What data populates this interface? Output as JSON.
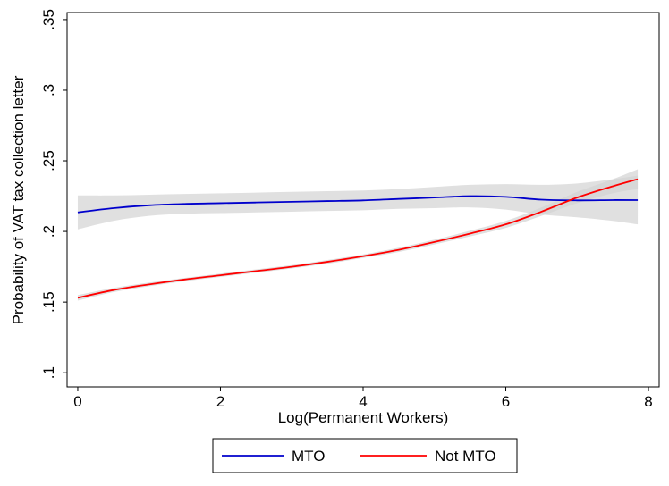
{
  "chart_data": {
    "type": "line",
    "title": "",
    "xlabel": "Log(Permanent Workers)",
    "ylabel": "Probability of VAT tax collection letter",
    "xlim": [
      -0.15,
      8.15
    ],
    "ylim": [
      0.09,
      0.355
    ],
    "x_ticks": [
      0,
      2,
      4,
      6,
      8
    ],
    "x_tick_labels": [
      "0",
      "2",
      "4",
      "6",
      "8"
    ],
    "y_ticks": [
      0.1,
      0.15,
      0.2,
      0.25,
      0.3,
      0.35
    ],
    "y_tick_labels": [
      ".1",
      ".15",
      ".2",
      ".25",
      ".3",
      ".35"
    ],
    "grid": false,
    "legend_position": "bottom",
    "series": [
      {
        "name": "MTO",
        "color": "#0000cc",
        "band_color": "#d3d3d3",
        "x": [
          0,
          0.5,
          1,
          1.5,
          2,
          2.5,
          3,
          3.5,
          4,
          4.5,
          5,
          5.5,
          6,
          6.5,
          7,
          7.5,
          7.85
        ],
        "y": [
          0.2135,
          0.2165,
          0.2185,
          0.2195,
          0.22,
          0.2205,
          0.221,
          0.2215,
          0.222,
          0.223,
          0.224,
          0.225,
          0.2245,
          0.2225,
          0.222,
          0.2222,
          0.2222
        ],
        "lower": [
          0.2015,
          0.2075,
          0.211,
          0.2125,
          0.213,
          0.2135,
          0.214,
          0.2145,
          0.215,
          0.216,
          0.2165,
          0.217,
          0.2155,
          0.212,
          0.21,
          0.2075,
          0.205
        ],
        "upper": [
          0.2255,
          0.2255,
          0.226,
          0.2265,
          0.227,
          0.2275,
          0.228,
          0.2285,
          0.229,
          0.23,
          0.2315,
          0.233,
          0.2335,
          0.233,
          0.234,
          0.237,
          0.2395
        ]
      },
      {
        "name": "Not MTO",
        "color": "#ff0000",
        "band_color": "#d3d3d3",
        "x": [
          0,
          0.5,
          1,
          1.5,
          2,
          2.5,
          3,
          3.5,
          4,
          4.5,
          5,
          5.5,
          6,
          6.5,
          7,
          7.5,
          7.85
        ],
        "y": [
          0.153,
          0.1585,
          0.1625,
          0.166,
          0.169,
          0.172,
          0.175,
          0.1785,
          0.1825,
          0.187,
          0.1925,
          0.1985,
          0.205,
          0.214,
          0.224,
          0.232,
          0.237
        ],
        "lower": [
          0.151,
          0.157,
          0.1612,
          0.1648,
          0.1678,
          0.1708,
          0.1738,
          0.1772,
          0.1812,
          0.1855,
          0.1908,
          0.1965,
          0.2025,
          0.211,
          0.22,
          0.227,
          0.23
        ],
        "upper": [
          0.155,
          0.16,
          0.1638,
          0.1672,
          0.1702,
          0.1732,
          0.1762,
          0.1798,
          0.1838,
          0.1885,
          0.1942,
          0.2005,
          0.2075,
          0.217,
          0.228,
          0.237,
          0.244
        ]
      }
    ]
  }
}
